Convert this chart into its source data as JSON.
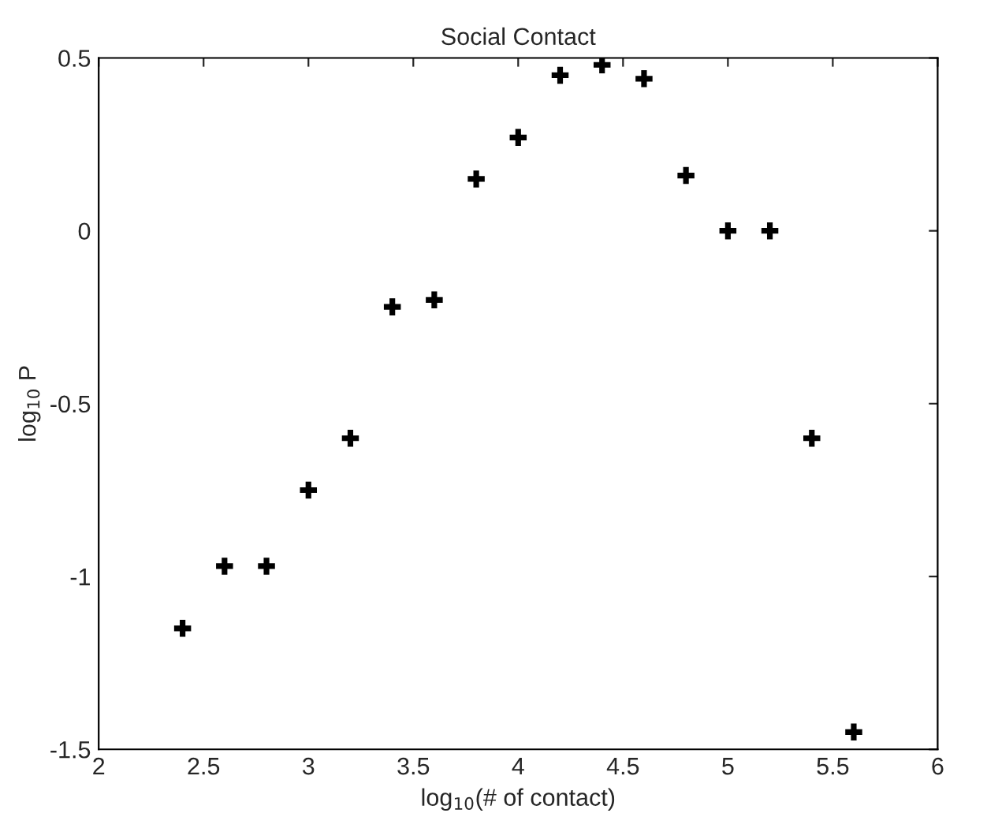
{
  "chart_data": {
    "type": "scatter",
    "title": "Social Contact",
    "xlabel": "log$_{10}$(# of contact)",
    "ylabel": "log$_{10}$ P",
    "x": [
      2.4,
      2.6,
      2.8,
      3.0,
      3.2,
      3.4,
      3.6,
      3.8,
      4.0,
      4.2,
      4.4,
      4.6,
      4.8,
      5.0,
      5.2,
      5.4,
      5.6
    ],
    "series": [
      {
        "color": "#000000",
        "values": [
          -1.15,
          -0.97,
          -0.97,
          -0.75,
          -0.6,
          -0.22,
          -0.2,
          0.15,
          0.27,
          0.45,
          0.48,
          0.44,
          0.16,
          0,
          0,
          -0.6,
          -1.45
        ]
      }
    ],
    "xlim": [
      2,
      6
    ],
    "ylim": [
      -1.5,
      0.5
    ],
    "xticks": [
      2,
      2.5,
      3,
      3.5,
      4,
      4.5,
      5,
      5.5,
      6
    ],
    "yticks": [
      -1.5,
      -1,
      -0.5,
      0,
      0.5
    ],
    "marker": "cross",
    "grid": false,
    "legend": false
  }
}
